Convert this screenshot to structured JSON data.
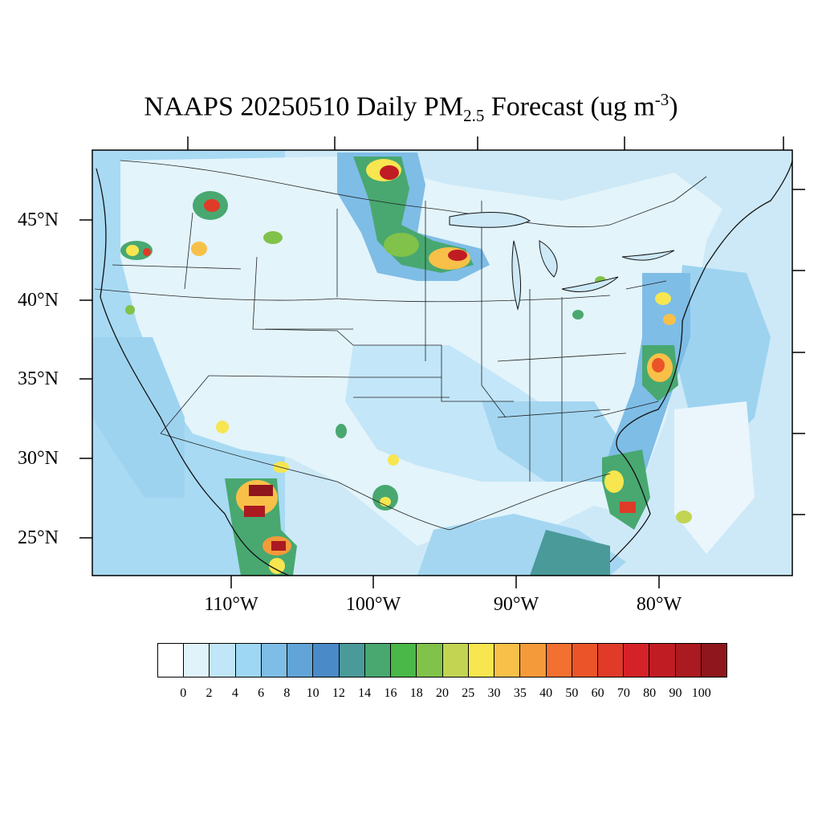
{
  "title": {
    "prefix": "NAAPS 20250510 Daily PM",
    "subscript": "2.5",
    "middle": " Forecast (ug m",
    "superscript": "-3",
    "suffix": ")"
  },
  "map": {
    "lat_labels": [
      "45°N",
      "40°N",
      "35°N",
      "30°N",
      "25°N"
    ],
    "lon_labels": [
      "110°W",
      "100°W",
      "90°W",
      "80°W"
    ],
    "background_color": "#dff2fb",
    "land_color": "#e6f5fc"
  },
  "colorbar": {
    "colors": [
      "#ffffff",
      "#e0f3fb",
      "#c0e6f8",
      "#9ed7f3",
      "#7ebde6",
      "#62a4d7",
      "#4a8ac8",
      "#4a9a9a",
      "#48a870",
      "#4ab848",
      "#80c24a",
      "#c2d452",
      "#f7e650",
      "#f8c048",
      "#f59a3a",
      "#f27030",
      "#ea5428",
      "#e03a28",
      "#d42228",
      "#c01c24",
      "#aa1a20",
      "#8e161c"
    ],
    "labels": [
      "0",
      "2",
      "4",
      "6",
      "8",
      "10",
      "12",
      "14",
      "16",
      "18",
      "20",
      "25",
      "30",
      "35",
      "40",
      "50",
      "60",
      "70",
      "80",
      "90",
      "100"
    ]
  }
}
